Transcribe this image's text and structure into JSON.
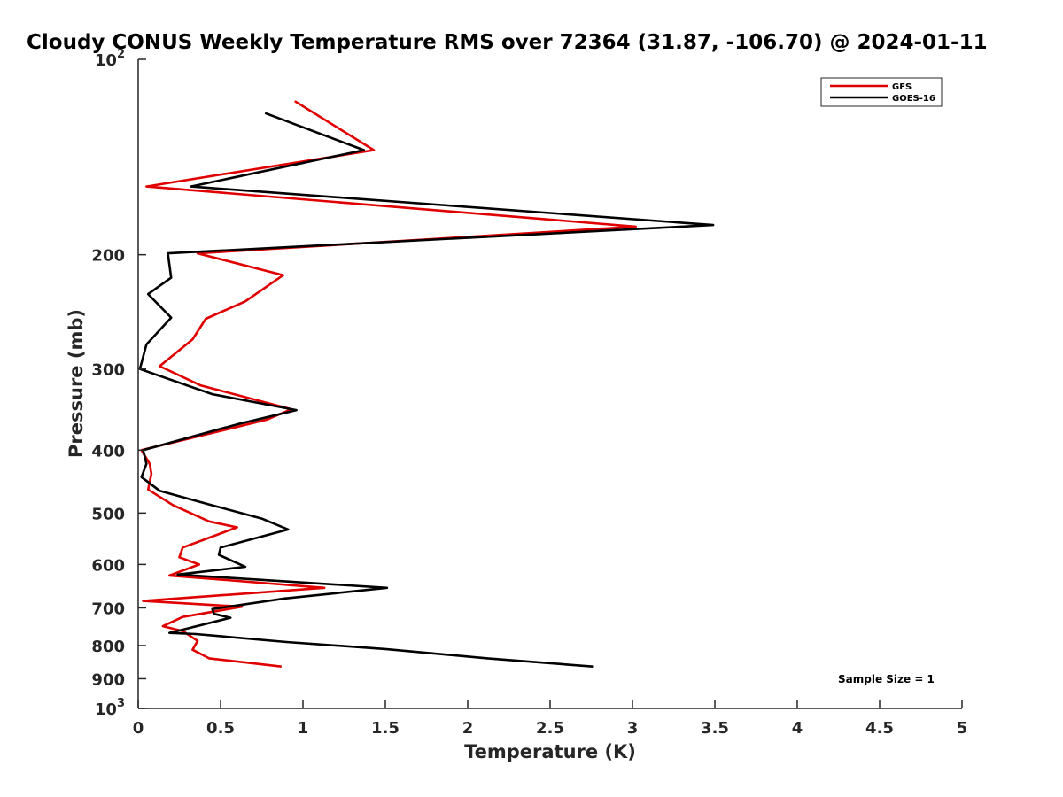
{
  "chart_data": {
    "type": "line",
    "title": "Cloudy CONUS Weekly Temperature RMS over 72364 (31.87, -106.70) @ 2024-01-11",
    "xlabel": "Temperature (K)",
    "ylabel": "Pressure (mb)",
    "xlim": [
      0,
      5
    ],
    "ylim": [
      100,
      1000
    ],
    "y_scale": "log",
    "y_reversed": true,
    "x_ticks": [
      "0",
      "0.5",
      "1",
      "1.5",
      "2",
      "2.5",
      "3",
      "3.5",
      "4",
      "4.5",
      "5"
    ],
    "y_ticks": [
      {
        "value": 100,
        "base": "10",
        "exp": "2"
      },
      {
        "value": 200,
        "label": "200"
      },
      {
        "value": 300,
        "label": "300"
      },
      {
        "value": 400,
        "label": "400"
      },
      {
        "value": 500,
        "label": "500"
      },
      {
        "value": 600,
        "label": "600"
      },
      {
        "value": 700,
        "label": "700"
      },
      {
        "value": 800,
        "label": "800"
      },
      {
        "value": 900,
        "label": "900"
      },
      {
        "value": 1000,
        "base": "10",
        "exp": "3"
      }
    ],
    "grid": false,
    "legend_position": "top-right",
    "annotation": "Sample Size = 1",
    "series": [
      {
        "name": "GFS",
        "color": "#e00000",
        "points": [
          [
            0.95,
            116
          ],
          [
            1.43,
            138
          ],
          [
            0.05,
            157
          ],
          [
            3.02,
            181
          ],
          [
            0.36,
            199
          ],
          [
            0.88,
            215
          ],
          [
            0.65,
            236
          ],
          [
            0.41,
            251
          ],
          [
            0.33,
            270
          ],
          [
            0.13,
            297
          ],
          [
            0.38,
            318
          ],
          [
            0.93,
            346
          ],
          [
            0.78,
            359
          ],
          [
            0.02,
            400
          ],
          [
            0.07,
            420
          ],
          [
            0.08,
            435
          ],
          [
            0.06,
            460
          ],
          [
            0.21,
            486
          ],
          [
            0.43,
            515
          ],
          [
            0.6,
            526
          ],
          [
            0.27,
            565
          ],
          [
            0.25,
            585
          ],
          [
            0.37,
            600
          ],
          [
            0.19,
            624
          ],
          [
            1.13,
            652
          ],
          [
            0.03,
            683
          ],
          [
            0.63,
            697
          ],
          [
            0.27,
            723
          ],
          [
            0.15,
            747
          ],
          [
            0.27,
            760
          ],
          [
            0.36,
            787
          ],
          [
            0.33,
            812
          ],
          [
            0.43,
            837
          ],
          [
            0.87,
            862
          ]
        ]
      },
      {
        "name": "GOES-16",
        "color": "#000000",
        "points": [
          [
            0.77,
            121
          ],
          [
            1.37,
            138
          ],
          [
            0.32,
            157
          ],
          [
            3.49,
            180
          ],
          [
            0.18,
            199
          ],
          [
            0.2,
            217
          ],
          [
            0.06,
            230
          ],
          [
            0.2,
            250
          ],
          [
            0.05,
            275
          ],
          [
            0.01,
            300
          ],
          [
            0.45,
            328
          ],
          [
            0.96,
            347
          ],
          [
            0.6,
            365
          ],
          [
            0.03,
            400
          ],
          [
            0.05,
            420
          ],
          [
            0.02,
            440
          ],
          [
            0.13,
            462
          ],
          [
            0.43,
            485
          ],
          [
            0.75,
            510
          ],
          [
            0.91,
            530
          ],
          [
            0.5,
            565
          ],
          [
            0.49,
            580
          ],
          [
            0.65,
            605
          ],
          [
            0.24,
            622
          ],
          [
            1.51,
            652
          ],
          [
            0.89,
            677
          ],
          [
            0.45,
            703
          ],
          [
            0.46,
            715
          ],
          [
            0.56,
            725
          ],
          [
            0.19,
            765
          ],
          [
            0.35,
            768
          ],
          [
            0.9,
            790
          ],
          [
            1.5,
            810
          ],
          [
            2.12,
            837
          ],
          [
            2.76,
            862
          ]
        ]
      }
    ]
  }
}
